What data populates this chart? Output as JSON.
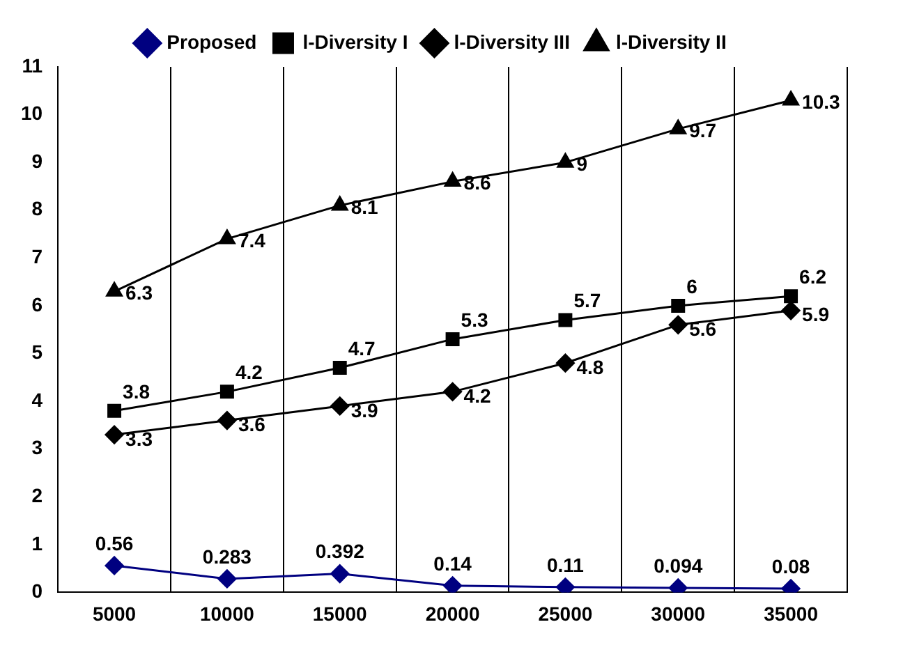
{
  "chart_data": {
    "type": "line",
    "categories": [
      "5000",
      "10000",
      "15000",
      "20000",
      "25000",
      "30000",
      "35000"
    ],
    "series": [
      {
        "name": "Proposed",
        "color": "#000080",
        "marker": "diamond",
        "values": [
          0.56,
          0.283,
          0.392,
          0.14,
          0.11,
          0.094,
          0.08
        ]
      },
      {
        "name": "l-Diversity I",
        "color": "#000000",
        "marker": "square",
        "values": [
          3.8,
          4.2,
          4.7,
          5.3,
          5.7,
          6,
          6.2
        ]
      },
      {
        "name": "l-Diversity III",
        "color": "#000000",
        "marker": "diamond",
        "values": [
          3.3,
          3.6,
          3.9,
          4.2,
          4.8,
          5.6,
          5.9
        ]
      },
      {
        "name": "l-Diversity II",
        "color": "#000000",
        "marker": "triangle",
        "values": [
          6.3,
          7.4,
          8.1,
          8.6,
          9,
          9.7,
          10.3
        ]
      }
    ],
    "ylim": [
      0,
      11
    ],
    "yticks": [
      0,
      1,
      2,
      3,
      4,
      5,
      6,
      7,
      8,
      9,
      10,
      11
    ],
    "grid": "x",
    "legend": "top",
    "data_labels": true
  }
}
